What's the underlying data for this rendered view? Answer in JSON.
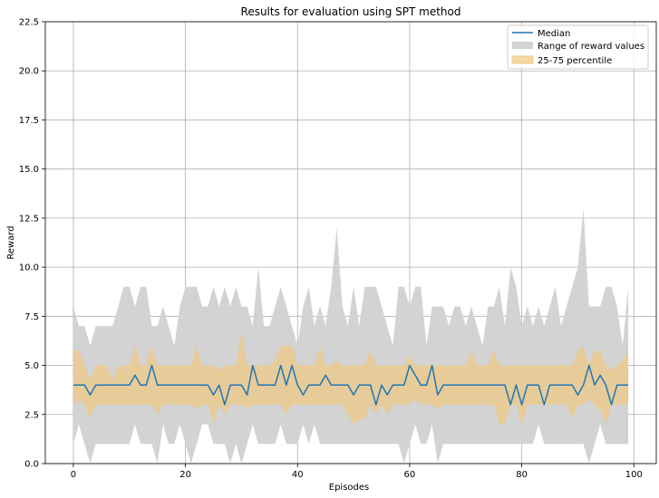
{
  "chart_data": {
    "type": "line",
    "title": "Results for evaluation using SPT method",
    "xlabel": "Episodes",
    "ylabel": "Reward",
    "xlim": [
      -5,
      104
    ],
    "ylim": [
      0,
      22.5
    ],
    "xticks": [
      0,
      20,
      40,
      60,
      80,
      100
    ],
    "yticks": [
      0.0,
      2.5,
      5.0,
      7.5,
      10.0,
      12.5,
      15.0,
      17.5,
      20.0,
      22.5
    ],
    "xtick_labels": [
      "0",
      "20",
      "40",
      "60",
      "80",
      "100"
    ],
    "ytick_labels": [
      "0.0",
      "2.5",
      "5.0",
      "7.5",
      "10.0",
      "12.5",
      "15.0",
      "17.5",
      "20.0",
      "22.5"
    ],
    "grid": true,
    "legend_position": "top-right",
    "colors": {
      "median": "#1f77b4",
      "range": "#d3d3d3",
      "iqr": "#f0c880"
    },
    "series": [
      {
        "name": "Median",
        "kind": "line",
        "values": [
          4,
          4,
          4,
          3.5,
          4,
          4,
          4,
          4,
          4,
          4,
          4,
          4.5,
          4,
          4,
          5,
          4,
          4,
          4,
          4,
          4,
          4,
          4,
          4,
          4,
          4,
          3.5,
          4,
          3,
          4,
          4,
          4,
          3.5,
          5,
          4,
          4,
          4,
          4,
          5,
          4,
          5,
          4,
          3.5,
          4,
          4,
          4,
          4.5,
          4,
          4,
          4,
          4,
          3.5,
          4,
          4,
          4,
          3,
          4,
          3.5,
          4,
          4,
          4,
          5,
          4.5,
          4,
          4,
          5,
          3.5,
          4,
          4,
          4,
          4,
          4,
          4,
          4,
          4,
          4,
          4,
          4,
          4,
          3,
          4,
          3,
          4,
          4,
          4,
          3,
          4,
          4,
          4,
          4,
          4,
          3.5,
          4,
          5,
          4,
          4.5,
          4,
          3,
          4,
          4,
          4
        ]
      },
      {
        "name": "Range of reward values",
        "kind": "band",
        "lower": [
          1,
          2,
          1,
          0,
          1,
          1,
          1,
          1,
          1,
          1,
          1,
          2,
          1,
          1,
          1,
          0,
          2,
          1,
          1,
          2,
          1,
          0,
          1,
          2,
          2,
          1,
          1,
          1,
          0,
          1,
          0,
          1,
          2,
          1,
          1,
          1,
          1,
          2,
          1,
          1,
          1,
          2,
          1,
          2,
          1,
          1,
          1,
          1,
          1,
          1,
          1,
          1,
          1,
          1,
          1,
          1,
          1,
          1,
          1,
          0,
          1,
          2,
          1,
          1,
          2,
          0,
          1,
          1,
          1,
          1,
          1,
          1,
          1,
          1,
          1,
          1,
          1,
          1,
          1,
          1,
          1,
          1,
          1,
          2,
          1,
          1,
          1,
          1,
          1,
          1,
          1,
          1,
          0,
          1,
          2,
          1,
          1,
          1,
          1,
          1
        ],
        "upper": [
          8,
          7,
          7,
          6,
          7,
          7,
          7,
          7,
          8,
          9,
          9,
          8,
          9,
          9,
          7,
          7,
          8,
          7,
          6,
          8,
          9,
          9,
          9,
          8,
          8,
          9,
          8,
          9,
          8,
          9,
          8,
          8,
          7,
          10,
          7,
          7,
          8,
          9,
          8,
          7,
          6,
          8,
          9,
          7,
          8,
          7,
          9,
          12,
          8,
          7,
          9,
          7,
          9,
          9,
          9,
          8,
          7,
          6,
          9,
          9,
          8,
          9,
          9,
          6,
          8,
          8,
          8,
          7,
          8,
          8,
          7,
          8,
          7,
          6,
          8,
          8,
          9,
          7,
          10,
          9,
          7,
          8,
          7,
          8,
          7,
          8,
          9,
          7,
          8,
          9,
          10,
          13,
          8,
          8,
          8,
          9,
          9,
          8,
          6,
          9
        ]
      },
      {
        "name": "25-75 percentile",
        "kind": "band",
        "lower": [
          3,
          3.25,
          3,
          2.25,
          3,
          3,
          3,
          3,
          3,
          3,
          3,
          3,
          3,
          3,
          3,
          2.5,
          3,
          3,
          3,
          3,
          3,
          3,
          2.75,
          3,
          3,
          2,
          3,
          2.5,
          3,
          3,
          3,
          2.75,
          3,
          3,
          3,
          3,
          3,
          3,
          2.5,
          3,
          3,
          3,
          3,
          3,
          3,
          3,
          3,
          3,
          3,
          2.5,
          2,
          2.25,
          2.25,
          3,
          2.5,
          3,
          2.5,
          3,
          3,
          3,
          3,
          3.25,
          3,
          3,
          3,
          2.75,
          3,
          3,
          3,
          3,
          3,
          3,
          3,
          3,
          3,
          3,
          2,
          2,
          3,
          3,
          2,
          3,
          3,
          3,
          3,
          3,
          3,
          3,
          3,
          2.25,
          3,
          3,
          3.25,
          3,
          2.75,
          2,
          3,
          3,
          3,
          3
        ],
        "upper": [
          5.75,
          5.75,
          5,
          4.25,
          5,
          5,
          5,
          4.25,
          5,
          5,
          5,
          6,
          5,
          5,
          6,
          5,
          5,
          5,
          5,
          5,
          5,
          5,
          6,
          5,
          5,
          5,
          4.75,
          5,
          5,
          5,
          6.75,
          5,
          5,
          5,
          5,
          5,
          5.25,
          6,
          6,
          6,
          5,
          5,
          5,
          5,
          6,
          5,
          5,
          5.25,
          5,
          5,
          5,
          5,
          5,
          5.75,
          5,
          5,
          5,
          5,
          5,
          5,
          5.5,
          5,
          5,
          5,
          5,
          5,
          5,
          5,
          5,
          5,
          5,
          5.75,
          5,
          5,
          5,
          5.75,
          5,
          5,
          5,
          5,
          5,
          5,
          5,
          5,
          5,
          5,
          5,
          5,
          5,
          5,
          5.75,
          6,
          5,
          5.75,
          5.75,
          5,
          4.75,
          5,
          5.25,
          5.75
        ]
      }
    ]
  }
}
